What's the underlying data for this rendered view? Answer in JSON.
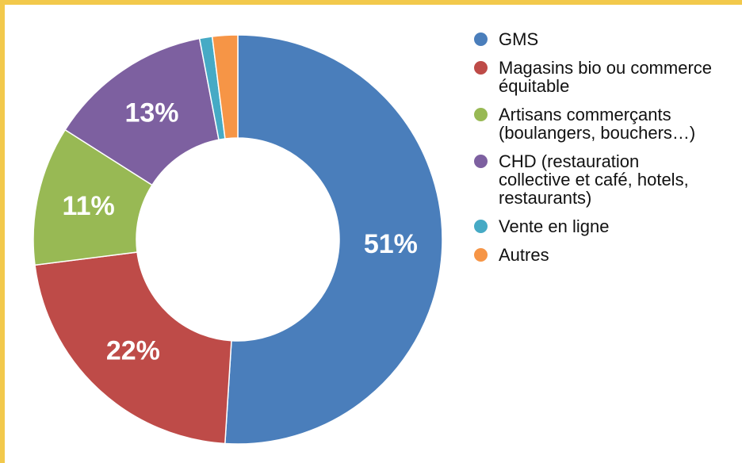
{
  "chart_data": {
    "type": "donut",
    "categories": [
      "GMS",
      "Magasins bio ou commerce équitable",
      "Artisans commerçants (boulangers, bouchers…)",
      "CHD (restauration collective et café, hotels, restaurants)",
      "Vente en ligne",
      "Autres"
    ],
    "values": [
      51,
      22,
      11,
      13,
      1,
      2
    ],
    "value_labels": [
      "51%",
      "22%",
      "11%",
      "13%",
      null,
      null
    ],
    "colors": [
      "#4a7ebb",
      "#be4b48",
      "#98b954",
      "#7d60a0",
      "#46aac5",
      "#f69546"
    ],
    "legend": "right"
  }
}
